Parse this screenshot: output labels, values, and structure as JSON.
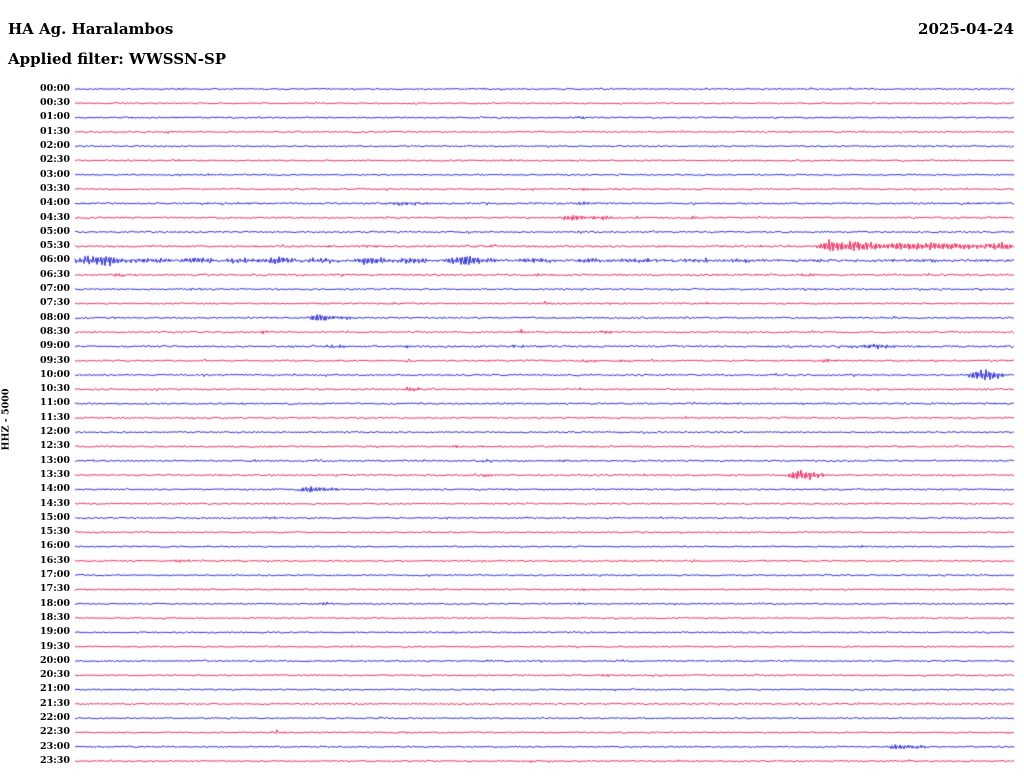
{
  "chart_data": {
    "type": "line",
    "title": "HA Ag. Haralambos",
    "date": "2025-04-24",
    "subtitle": "Applied filter: WWSSN-SP",
    "ylabel": "HHZ - 5000",
    "layout_hint": "helicorder seismogram, 48 half-hour traces stacked vertically, alternating blue/red, no grid, labels on left",
    "background": "#ffffff",
    "colors": {
      "blue": "#0000cc",
      "red": "#e8003c"
    },
    "rows": [
      {
        "label": "00:00",
        "color": "blue",
        "noise": 0.7,
        "events": [
          [
            0.11,
            1.5,
            6
          ]
        ]
      },
      {
        "label": "00:30",
        "color": "red",
        "noise": 0.7,
        "events": []
      },
      {
        "label": "01:00",
        "color": "blue",
        "noise": 0.7,
        "events": [
          [
            0.54,
            1.8,
            5
          ]
        ]
      },
      {
        "label": "01:30",
        "color": "red",
        "noise": 0.7,
        "events": [
          [
            0.1,
            1.6,
            5
          ],
          [
            0.76,
            1.2,
            5
          ]
        ]
      },
      {
        "label": "02:00",
        "color": "blue",
        "noise": 0.7,
        "events": []
      },
      {
        "label": "02:30",
        "color": "red",
        "noise": 0.7,
        "events": [
          [
            0.11,
            1.5,
            5
          ]
        ]
      },
      {
        "label": "03:00",
        "color": "blue",
        "noise": 0.7,
        "events": [
          [
            0.11,
            1.2,
            4
          ]
        ]
      },
      {
        "label": "03:30",
        "color": "red",
        "noise": 0.7,
        "events": [
          [
            0.54,
            1.5,
            5
          ],
          [
            0.72,
            1.2,
            4
          ]
        ]
      },
      {
        "label": "04:00",
        "color": "blue",
        "noise": 0.8,
        "events": [
          [
            0.35,
            1.8,
            18
          ],
          [
            0.54,
            1.5,
            5
          ]
        ]
      },
      {
        "label": "04:30",
        "color": "red",
        "noise": 0.8,
        "events": [
          [
            0.53,
            4.0,
            7
          ],
          [
            0.56,
            2.0,
            10
          ],
          [
            0.66,
            1.2,
            4
          ]
        ]
      },
      {
        "label": "05:00",
        "color": "blue",
        "noise": 0.8,
        "events": []
      },
      {
        "label": "05:30",
        "color": "red",
        "noise": 0.9,
        "events": [
          [
            0.3,
            1.2,
            15
          ],
          [
            0.44,
            1.2,
            10
          ],
          [
            0.805,
            6.0,
            8
          ],
          [
            0.83,
            4.5,
            15
          ],
          [
            0.88,
            3.5,
            25
          ],
          [
            0.94,
            3.5,
            25
          ],
          [
            0.99,
            3.5,
            10
          ]
        ]
      },
      {
        "label": "06:00",
        "color": "blue",
        "noise": 1.1,
        "events": [
          [
            0.01,
            4.0,
            8
          ],
          [
            0.035,
            5.0,
            10
          ],
          [
            0.08,
            3.0,
            15
          ],
          [
            0.13,
            3.5,
            10
          ],
          [
            0.175,
            2.5,
            12
          ],
          [
            0.215,
            4.0,
            10
          ],
          [
            0.26,
            2.5,
            15
          ],
          [
            0.315,
            4.5,
            12
          ],
          [
            0.36,
            3.0,
            12
          ],
          [
            0.405,
            4.5,
            8
          ],
          [
            0.42,
            5.5,
            5
          ],
          [
            0.44,
            3.0,
            10
          ],
          [
            0.49,
            2.5,
            12
          ],
          [
            0.545,
            2.0,
            15
          ],
          [
            0.6,
            1.8,
            15
          ],
          [
            0.66,
            1.5,
            15
          ],
          [
            0.72,
            1.5,
            15
          ],
          [
            0.79,
            1.5,
            15
          ],
          [
            0.86,
            1.2,
            15
          ],
          [
            0.92,
            1.2,
            10
          ]
        ]
      },
      {
        "label": "06:30",
        "color": "red",
        "noise": 0.9,
        "events": [
          [
            0.05,
            1.2,
            10
          ],
          [
            0.25,
            1.0,
            10
          ],
          [
            0.5,
            1.2,
            8
          ],
          [
            0.78,
            1.2,
            8
          ]
        ]
      },
      {
        "label": "07:00",
        "color": "blue",
        "noise": 0.8,
        "events": [
          [
            0.13,
            1.2,
            5
          ],
          [
            0.79,
            1.5,
            5
          ]
        ]
      },
      {
        "label": "07:30",
        "color": "red",
        "noise": 0.7,
        "events": [
          [
            0.5,
            1.8,
            5
          ]
        ]
      },
      {
        "label": "08:00",
        "color": "blue",
        "noise": 0.8,
        "events": [
          [
            0.26,
            3.5,
            8
          ],
          [
            0.29,
            2.0,
            10
          ]
        ]
      },
      {
        "label": "08:30",
        "color": "red",
        "noise": 0.8,
        "events": [
          [
            0.2,
            1.8,
            5
          ],
          [
            0.475,
            1.5,
            6
          ],
          [
            0.565,
            1.8,
            6
          ]
        ]
      },
      {
        "label": "09:00",
        "color": "blue",
        "noise": 0.9,
        "events": [
          [
            0.28,
            1.8,
            8
          ],
          [
            0.47,
            1.5,
            6
          ],
          [
            0.84,
            1.8,
            12
          ],
          [
            0.86,
            1.5,
            8
          ]
        ]
      },
      {
        "label": "09:30",
        "color": "red",
        "noise": 0.8,
        "events": [
          [
            0.55,
            1.8,
            6
          ],
          [
            0.585,
            1.5,
            5
          ],
          [
            0.8,
            1.5,
            6
          ]
        ]
      },
      {
        "label": "10:00",
        "color": "blue",
        "noise": 0.8,
        "events": [
          [
            0.965,
            5.5,
            8
          ],
          [
            0.98,
            3.0,
            8
          ]
        ]
      },
      {
        "label": "10:30",
        "color": "red",
        "noise": 0.8,
        "events": [
          [
            0.36,
            1.8,
            6
          ],
          [
            0.58,
            1.2,
            5
          ]
        ]
      },
      {
        "label": "11:00",
        "color": "blue",
        "noise": 0.8,
        "events": []
      },
      {
        "label": "11:30",
        "color": "red",
        "noise": 0.7,
        "events": []
      },
      {
        "label": "12:00",
        "color": "blue",
        "noise": 0.7,
        "events": []
      },
      {
        "label": "12:30",
        "color": "red",
        "noise": 0.8,
        "events": [
          [
            0.41,
            1.2,
            5
          ]
        ]
      },
      {
        "label": "13:00",
        "color": "blue",
        "noise": 0.8,
        "events": [
          [
            0.44,
            1.5,
            5
          ],
          [
            0.52,
            1.2,
            5
          ]
        ]
      },
      {
        "label": "13:30",
        "color": "red",
        "noise": 0.8,
        "events": [
          [
            0.44,
            1.2,
            5
          ],
          [
            0.77,
            4.0,
            8
          ],
          [
            0.785,
            3.0,
            12
          ]
        ]
      },
      {
        "label": "14:00",
        "color": "blue",
        "noise": 0.8,
        "events": [
          [
            0.25,
            3.0,
            8
          ],
          [
            0.27,
            2.0,
            10
          ]
        ]
      },
      {
        "label": "14:30",
        "color": "red",
        "noise": 0.7,
        "events": []
      },
      {
        "label": "15:00",
        "color": "blue",
        "noise": 0.7,
        "events": [
          [
            0.21,
            1.5,
            5
          ]
        ]
      },
      {
        "label": "15:30",
        "color": "red",
        "noise": 0.7,
        "events": []
      },
      {
        "label": "16:00",
        "color": "blue",
        "noise": 0.7,
        "events": [
          [
            0.84,
            1.2,
            5
          ]
        ]
      },
      {
        "label": "16:30",
        "color": "red",
        "noise": 0.7,
        "events": [
          [
            0.115,
            1.8,
            5
          ],
          [
            0.59,
            1.2,
            5
          ],
          [
            0.66,
            1.2,
            5
          ]
        ]
      },
      {
        "label": "17:00",
        "color": "blue",
        "noise": 0.7,
        "events": []
      },
      {
        "label": "17:30",
        "color": "red",
        "noise": 0.7,
        "events": [
          [
            0.13,
            1.2,
            4
          ]
        ]
      },
      {
        "label": "18:00",
        "color": "blue",
        "noise": 0.7,
        "events": [
          [
            0.13,
            1.2,
            4
          ],
          [
            0.265,
            1.5,
            6
          ]
        ]
      },
      {
        "label": "18:30",
        "color": "red",
        "noise": 0.7,
        "events": []
      },
      {
        "label": "19:00",
        "color": "blue",
        "noise": 0.7,
        "events": [
          [
            0.4,
            1.2,
            8
          ]
        ]
      },
      {
        "label": "19:30",
        "color": "red",
        "noise": 0.7,
        "events": []
      },
      {
        "label": "20:00",
        "color": "blue",
        "noise": 0.7,
        "events": [
          [
            0.44,
            1.5,
            5
          ]
        ]
      },
      {
        "label": "20:30",
        "color": "red",
        "noise": 0.7,
        "events": [
          [
            0.565,
            1.5,
            5
          ]
        ]
      },
      {
        "label": "21:00",
        "color": "blue",
        "noise": 0.7,
        "events": []
      },
      {
        "label": "21:30",
        "color": "red",
        "noise": 0.7,
        "events": []
      },
      {
        "label": "22:00",
        "color": "blue",
        "noise": 0.7,
        "events": []
      },
      {
        "label": "22:30",
        "color": "red",
        "noise": 0.7,
        "events": [
          [
            0.215,
            1.5,
            5
          ],
          [
            0.3,
            1.2,
            4
          ],
          [
            0.35,
            1.2,
            4
          ]
        ]
      },
      {
        "label": "23:00",
        "color": "blue",
        "noise": 0.7,
        "events": [
          [
            0.875,
            2.5,
            8
          ],
          [
            0.895,
            1.5,
            8
          ]
        ]
      },
      {
        "label": "23:30",
        "color": "red",
        "noise": 0.7,
        "events": []
      }
    ]
  }
}
